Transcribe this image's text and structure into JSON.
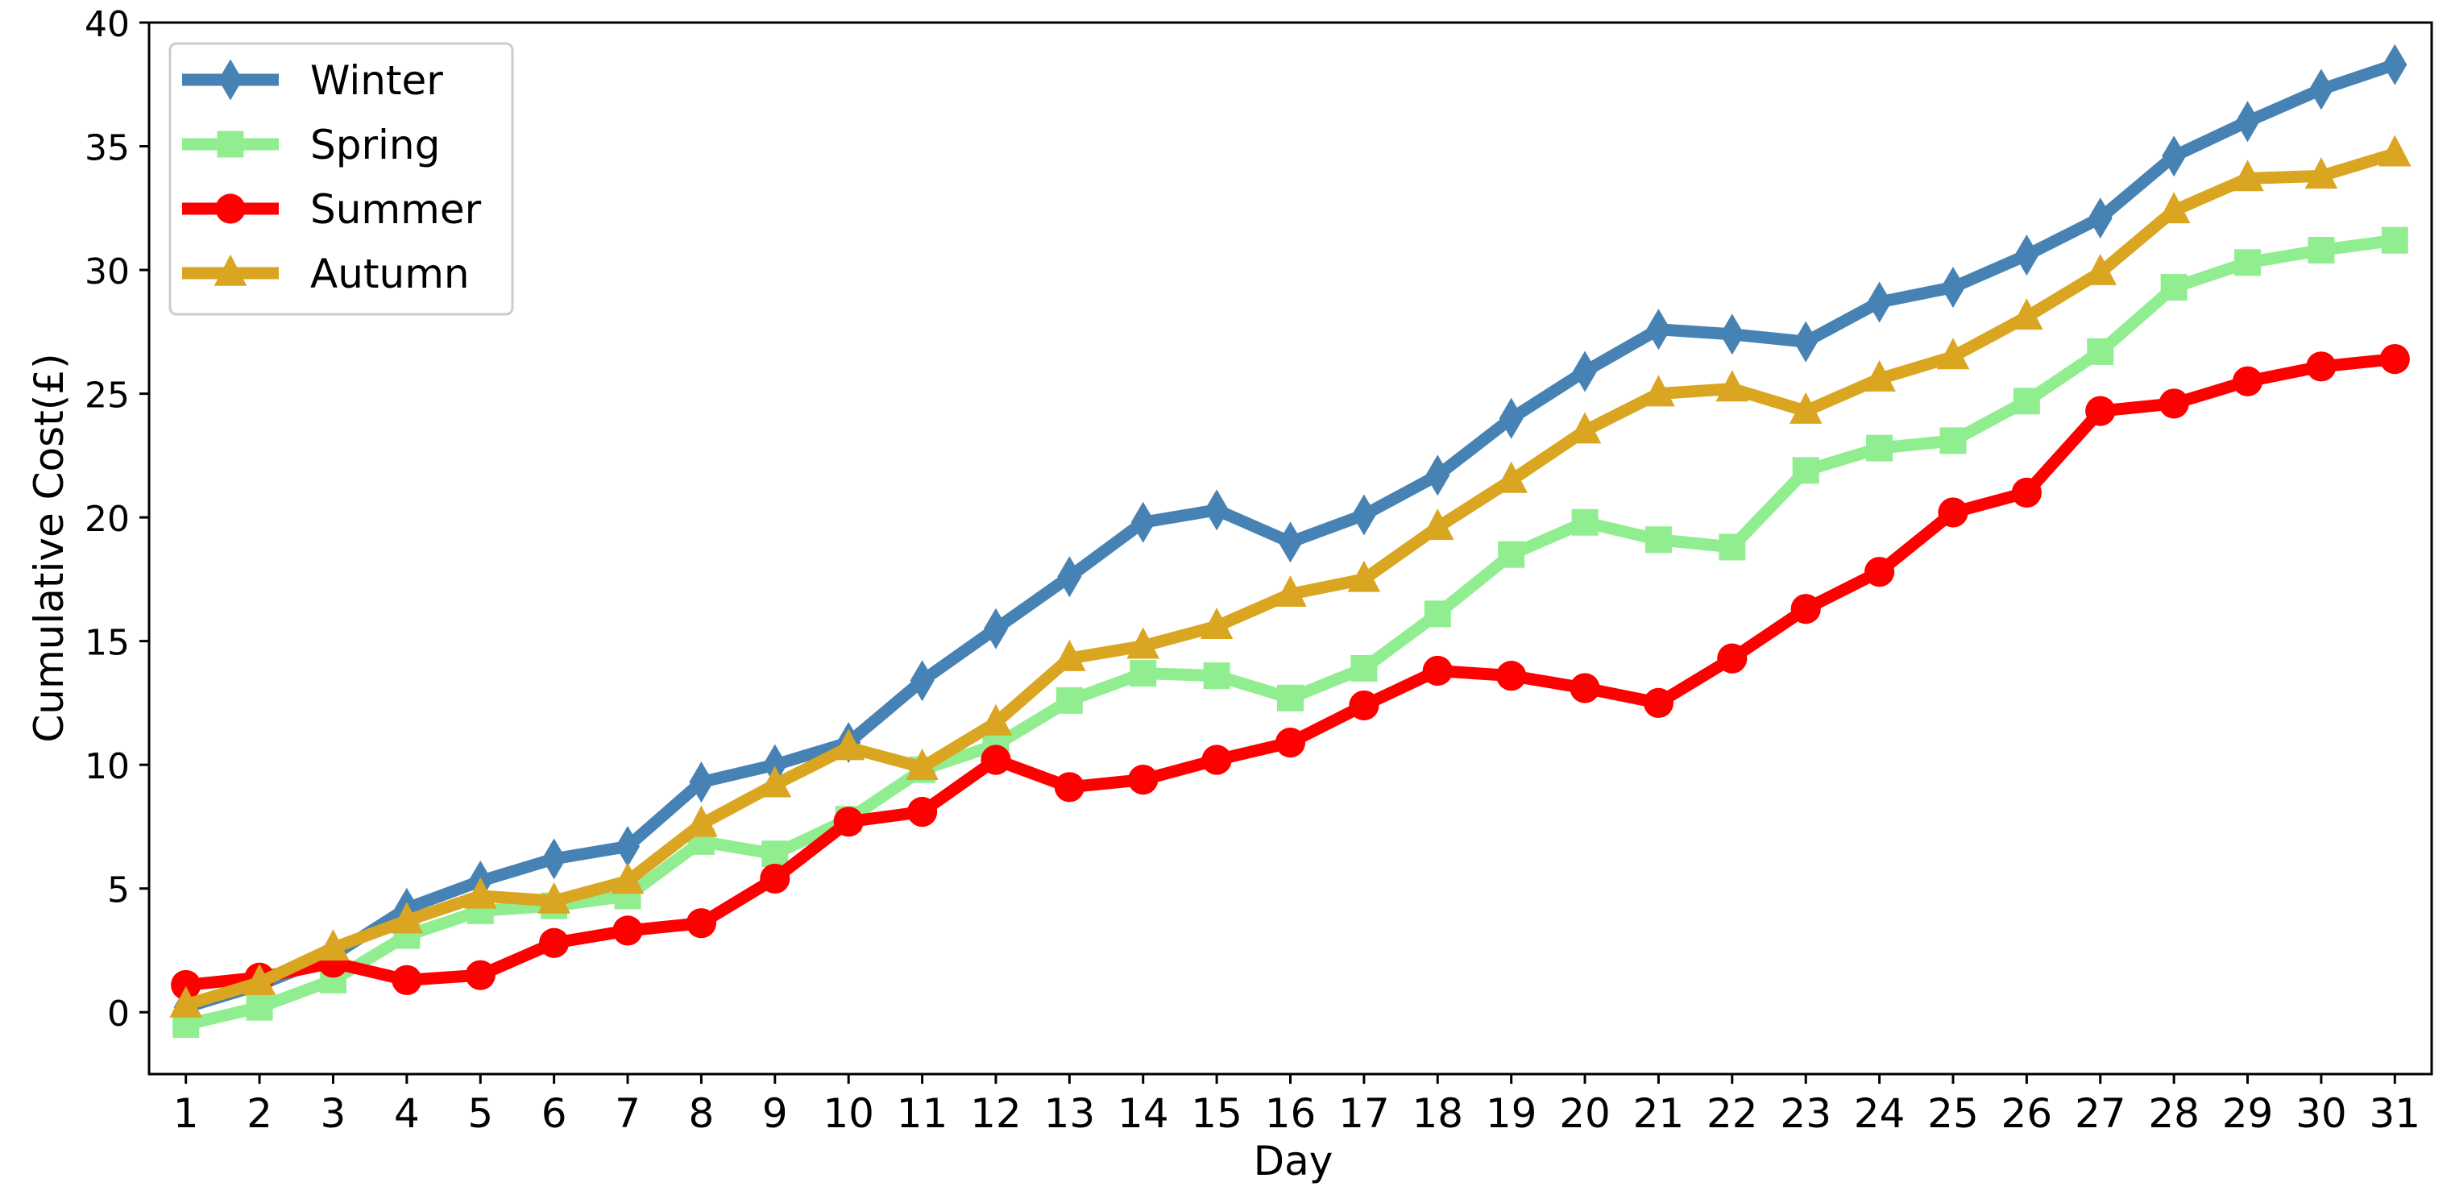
{
  "chart_data": {
    "type": "line",
    "title": "",
    "xlabel": "Day",
    "ylabel": "Cumulative Cost(£)",
    "x": [
      1,
      2,
      3,
      4,
      5,
      6,
      7,
      8,
      9,
      10,
      11,
      12,
      13,
      14,
      15,
      16,
      17,
      18,
      19,
      20,
      21,
      22,
      23,
      24,
      25,
      26,
      27,
      28,
      29,
      30,
      31
    ],
    "xticks": [
      "1",
      "2",
      "3",
      "4",
      "5",
      "6",
      "7",
      "8",
      "9",
      "10",
      "11",
      "12",
      "13",
      "14",
      "15",
      "16",
      "17",
      "18",
      "19",
      "20",
      "21",
      "22",
      "23",
      "24",
      "25",
      "26",
      "27",
      "28",
      "29",
      "30",
      "31"
    ],
    "yticks": [
      "0",
      "5",
      "10",
      "15",
      "20",
      "25",
      "30",
      "35",
      "40"
    ],
    "ylim": [
      -2.5,
      40
    ],
    "xlim": [
      0.5,
      31.5
    ],
    "grid": false,
    "legend_position": "upper-left",
    "series": [
      {
        "name": "Winter",
        "color": "#4682B4",
        "marker": "thin_diamond",
        "values": [
          0.2,
          1.1,
          2.3,
          4.2,
          5.3,
          6.2,
          6.7,
          9.3,
          10.0,
          10.9,
          13.4,
          15.5,
          17.6,
          19.8,
          20.3,
          19.0,
          20.1,
          21.7,
          24.0,
          25.9,
          27.6,
          27.4,
          27.1,
          28.7,
          29.3,
          30.6,
          32.1,
          34.6,
          36.0,
          37.3,
          38.3
        ]
      },
      {
        "name": "Spring",
        "color": "#90EE90",
        "marker": "square",
        "values": [
          -0.5,
          0.2,
          1.3,
          3.1,
          4.1,
          4.3,
          4.7,
          6.9,
          6.4,
          7.8,
          9.8,
          10.8,
          12.6,
          13.7,
          13.6,
          12.7,
          13.9,
          16.1,
          18.5,
          19.8,
          19.1,
          18.8,
          21.9,
          22.8,
          23.1,
          24.7,
          26.7,
          29.3,
          30.3,
          30.8,
          31.2
        ]
      },
      {
        "name": "Summer",
        "color": "#FF0000",
        "marker": "circle",
        "values": [
          1.1,
          1.4,
          2.0,
          1.3,
          1.5,
          2.8,
          3.3,
          3.6,
          5.4,
          7.7,
          8.1,
          10.2,
          9.1,
          9.4,
          10.2,
          10.9,
          12.4,
          13.8,
          13.6,
          13.1,
          12.5,
          14.3,
          16.3,
          17.8,
          20.2,
          21.0,
          24.3,
          24.6,
          25.5,
          26.1,
          26.4
        ]
      },
      {
        "name": "Autumn",
        "color": "#DAA520",
        "marker": "triangle",
        "values": [
          0.3,
          1.2,
          2.6,
          3.7,
          4.7,
          4.5,
          5.3,
          7.6,
          9.2,
          10.7,
          9.9,
          11.7,
          14.3,
          14.8,
          15.6,
          16.9,
          17.5,
          19.6,
          21.5,
          23.5,
          25.0,
          25.2,
          24.3,
          25.6,
          26.5,
          28.1,
          29.9,
          32.4,
          33.7,
          33.8,
          34.7
        ]
      }
    ]
  }
}
